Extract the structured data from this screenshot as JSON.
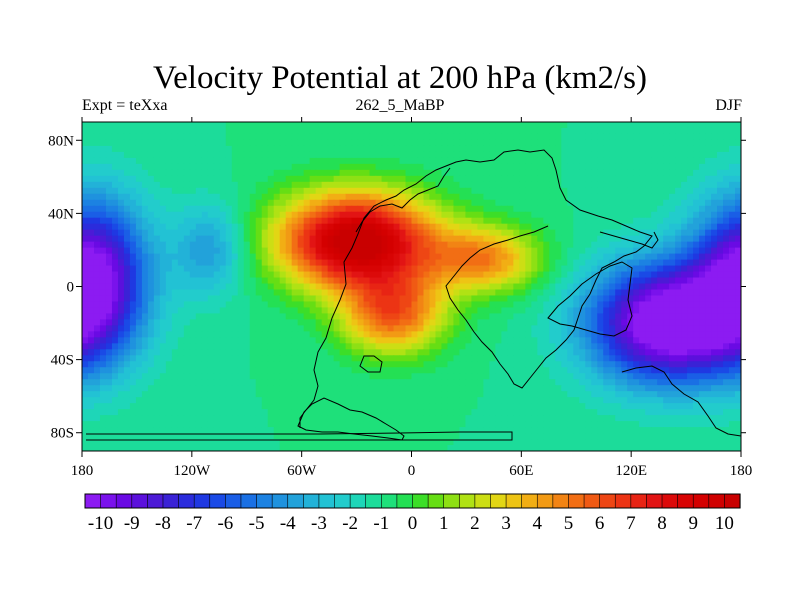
{
  "chart_data": {
    "type": "heatmap",
    "title": "Velocity Potential at 200 hPa (km2/s)",
    "subtitle_left": "Expt = teXxa",
    "subtitle_center": "262_5_MaBP",
    "subtitle_right": "DJF",
    "x_range": [
      -180,
      180
    ],
    "y_range": [
      -90,
      90
    ],
    "x_ticks": [
      {
        "value": -180,
        "label": "180"
      },
      {
        "value": -120,
        "label": "120W"
      },
      {
        "value": -60,
        "label": "60W"
      },
      {
        "value": 0,
        "label": "0"
      },
      {
        "value": 60,
        "label": "60E"
      },
      {
        "value": 120,
        "label": "120E"
      },
      {
        "value": 180,
        "label": "180"
      }
    ],
    "y_ticks": [
      {
        "value": 80,
        "label": "80N"
      },
      {
        "value": 40,
        "label": "40N"
      },
      {
        "value": 0,
        "label": "0"
      },
      {
        "value": -40,
        "label": "40S"
      },
      {
        "value": -80,
        "label": "80S"
      }
    ],
    "colorbar": {
      "min": -10.5,
      "max": 10.5,
      "step": 0.5,
      "labels": [
        "-10",
        "-9",
        "-8",
        "-7",
        "-6",
        "-5",
        "-4",
        "-3",
        "-2",
        "-1",
        "0",
        "1",
        "2",
        "3",
        "4",
        "5",
        "6",
        "7",
        "8",
        "9",
        "10"
      ],
      "colors": [
        "#8c1bf2",
        "#7a12ec",
        "#6a0ae4",
        "#5b10dc",
        "#4c1ad6",
        "#3a22d6",
        "#2b2cdc",
        "#1f38e2",
        "#1a4ae6",
        "#1a5ee6",
        "#1a70e4",
        "#1c82e2",
        "#1f92de",
        "#22a2da",
        "#22b2d8",
        "#22c2d4",
        "#22cccc",
        "#1ed6b8",
        "#1cdc9a",
        "#1ee07a",
        "#24e054",
        "#3cde28",
        "#66de14",
        "#8ee014",
        "#b0e214",
        "#ccde14",
        "#e2d614",
        "#eec414",
        "#f2ae14",
        "#f29a14",
        "#f28414",
        "#f26e14",
        "#f05a14",
        "#ee4614",
        "#ec3414",
        "#e82414",
        "#e21414",
        "#dc0a0a",
        "#d80404",
        "#d40000",
        "#cf0000",
        "#c90000"
      ]
    },
    "field_centers": [
      {
        "lon": -30,
        "lat": 25,
        "value": 11.0,
        "spread_lon": 42,
        "spread_lat": 26
      },
      {
        "lon": -10,
        "lat": -15,
        "value": 5.5,
        "spread_lon": 28,
        "spread_lat": 22
      },
      {
        "lon": 40,
        "lat": 15,
        "value": 4.5,
        "spread_lon": 30,
        "spread_lat": 18
      },
      {
        "lon": 140,
        "lat": -20,
        "value": -12.0,
        "spread_lon": 42,
        "spread_lat": 32
      },
      {
        "lon": -175,
        "lat": 5,
        "value": -10.5,
        "spread_lon": 30,
        "spread_lat": 42
      },
      {
        "lon": -110,
        "lat": 20,
        "value": -4.0,
        "spread_lon": 20,
        "spread_lat": 25
      }
    ],
    "field_background": -1.0
  }
}
